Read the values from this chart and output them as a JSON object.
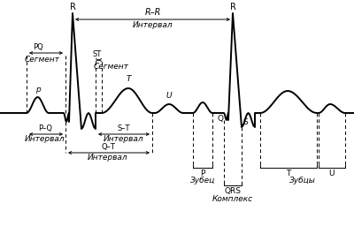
{
  "background_color": "#ffffff",
  "fig_width": 4.0,
  "fig_height": 2.73,
  "dpi": 100,
  "annotations": {
    "R_label1": "R",
    "R_label2": "R",
    "RR_label": "R–R",
    "interval_label": "Интервал",
    "PQ_seg": "PQ",
    "seg1": "Сегмент",
    "ST_seg": "ST",
    "seg2": "Сегмент",
    "P_label": "p",
    "T_label": "T",
    "U_label1": "U",
    "PQ_int": "P–Q",
    "interval2": "Интервал",
    "ST_int": "S–T",
    "interval3": "Интервал",
    "QT_int": "Q–T",
    "interval4": "Интервал",
    "P_zubec": "P",
    "zubec": "Зубец",
    "Q_label": "Q",
    "S_label": "S",
    "QRS": "QRS",
    "complex": "Комплекс",
    "T_zub": "T",
    "U_zub": "U",
    "zubcy": "Зубцы"
  }
}
